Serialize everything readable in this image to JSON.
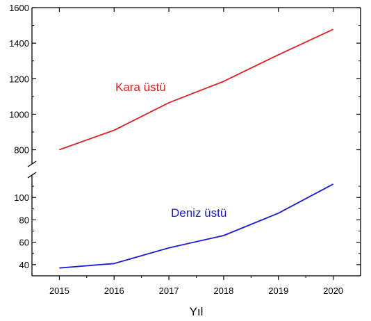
{
  "chart_data": {
    "type": "line",
    "title": "",
    "xlabel": "Yıl",
    "ylabel": "",
    "x": [
      2015,
      2016,
      2017,
      2018,
      2019,
      2020
    ],
    "xlim": [
      2014.5,
      2020.5
    ],
    "broken_y_axis": true,
    "upper_ylim": [
      720,
      1600
    ],
    "upper_yticks": [
      800,
      1000,
      1200,
      1400,
      1600
    ],
    "lower_ylim": [
      30,
      120
    ],
    "lower_yticks": [
      40,
      60,
      80,
      100
    ],
    "grid": false,
    "series": [
      {
        "name": "Kara üstü",
        "panel": "upper",
        "color": "#e02020",
        "values": [
          800,
          910,
          1065,
          1185,
          1335,
          1478
        ]
      },
      {
        "name": "Deniz üstü",
        "panel": "lower",
        "color": "#1a1ad6",
        "values": [
          37,
          41,
          55,
          66,
          86,
          112
        ]
      }
    ]
  }
}
